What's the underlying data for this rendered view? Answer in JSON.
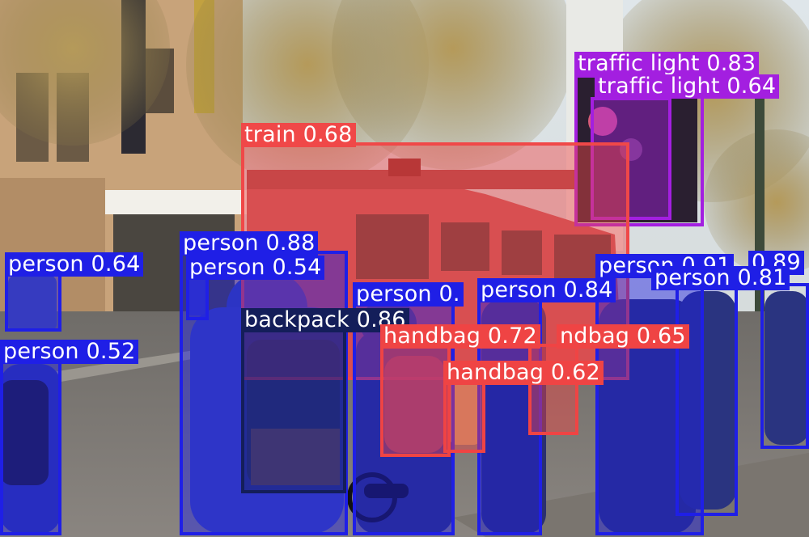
{
  "image": {
    "description_free": true,
    "colors": {
      "person": "#1F1FE6",
      "train": "#F04848",
      "backpack": "#141E5A",
      "handbag": "#EF4444",
      "traffic_light": "#A31FE0"
    }
  },
  "detections": [
    {
      "label": "traffic light 0.83",
      "class": "traffic_light"
    },
    {
      "label": "traffic light 0.64",
      "class": "traffic_light"
    },
    {
      "label": "train 0.68",
      "class": "train"
    },
    {
      "label": "person 0.88",
      "class": "person"
    },
    {
      "label": "person 0.64",
      "class": "person"
    },
    {
      "label": "person 0.54",
      "class": "person"
    },
    {
      "label": "person 0.",
      "class": "person"
    },
    {
      "label": "person 0.84",
      "class": "person"
    },
    {
      "label": "person 0.91",
      "class": "person"
    },
    {
      "label": "0.89",
      "class": "person"
    },
    {
      "label": "person 0.81",
      "class": "person"
    },
    {
      "label": "backpack 0.86",
      "class": "backpack"
    },
    {
      "label": "handbag 0.72",
      "class": "handbag"
    },
    {
      "label": "ndbag 0.65",
      "class": "handbag"
    },
    {
      "label": "handbag 0.62",
      "class": "handbag"
    },
    {
      "label": "person 0.52",
      "class": "person"
    }
  ]
}
